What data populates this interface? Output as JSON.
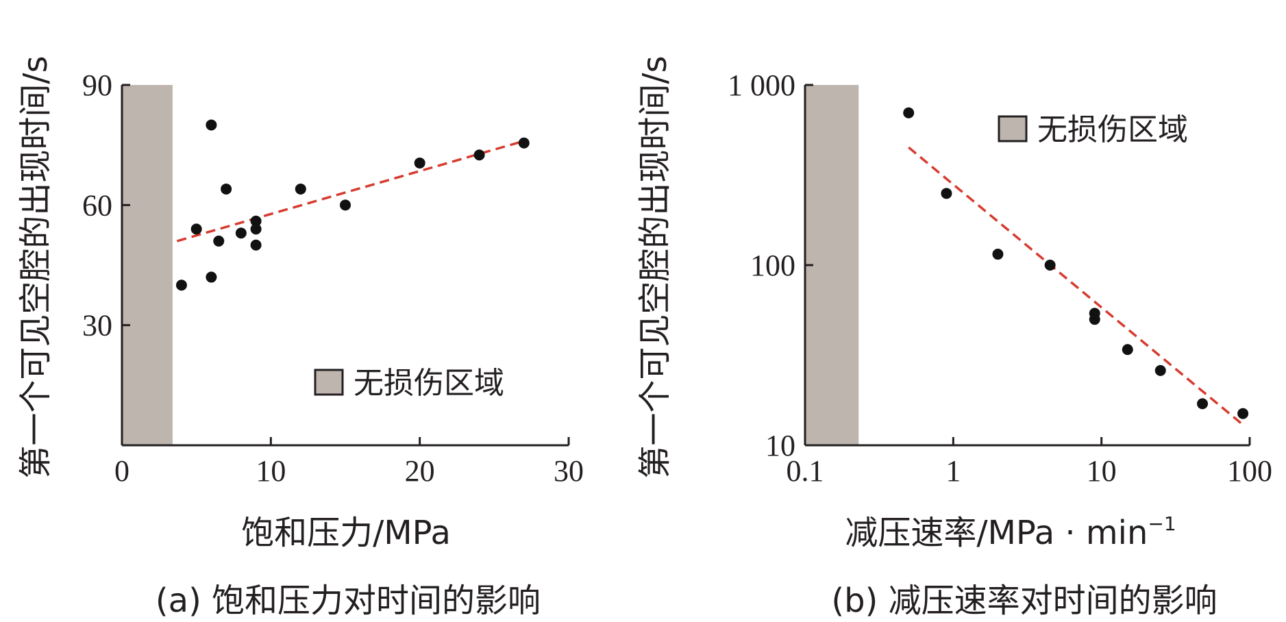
{
  "chart_data": [
    {
      "type": "scatter",
      "xlabel": "饱和压力/MPa",
      "ylabel": "第一个可见空腔的出现时间/s",
      "caption": "(a) 饱和压力对时间的影响",
      "xlim": [
        0,
        30
      ],
      "ylim": [
        0,
        90
      ],
      "xticks": [
        "0",
        "10",
        "20",
        "30"
      ],
      "yticks": [
        "30",
        "60",
        "90"
      ],
      "xtick_values": [
        0,
        10,
        20,
        30
      ],
      "ytick_values": [
        30,
        60,
        90
      ],
      "legend": {
        "label": "无损伤区域",
        "color": "#bdb5ae",
        "position": "bottom-right"
      },
      "shaded_region": {
        "x": [
          0,
          3.4
        ]
      },
      "points": [
        {
          "x": 4,
          "y": 40
        },
        {
          "x": 5,
          "y": 54
        },
        {
          "x": 6,
          "y": 80
        },
        {
          "x": 6,
          "y": 42
        },
        {
          "x": 6.5,
          "y": 51
        },
        {
          "x": 7,
          "y": 64
        },
        {
          "x": 8,
          "y": 53
        },
        {
          "x": 9,
          "y": 56
        },
        {
          "x": 9,
          "y": 54
        },
        {
          "x": 9,
          "y": 50
        },
        {
          "x": 12,
          "y": 64
        },
        {
          "x": 15,
          "y": 60
        },
        {
          "x": 20,
          "y": 70.5
        },
        {
          "x": 24,
          "y": 72.5
        },
        {
          "x": 27,
          "y": 75.5
        }
      ],
      "fit_line": {
        "x": [
          3.7,
          27
        ],
        "y": [
          51,
          76
        ],
        "color": "#d63b2f"
      }
    },
    {
      "type": "scatter",
      "xlabel": "减压速率/MPa · min",
      "xlabel_sup": "−1",
      "ylabel": "第一个可见空腔的出现时间/s",
      "caption": "(b) 减压速率对时间的影响",
      "xscale": "log",
      "yscale": "log",
      "xlim": [
        0.1,
        100
      ],
      "ylim": [
        10,
        1000
      ],
      "xticks": [
        "0.1",
        "1",
        "10",
        "100"
      ],
      "yticks": [
        "10",
        "100",
        "1 000"
      ],
      "xtick_values": [
        0.1,
        1,
        10,
        100
      ],
      "ytick_values": [
        10,
        100,
        1000
      ],
      "legend": {
        "label": "无损伤区域",
        "color": "#bdb5ae",
        "position": "top-right"
      },
      "shaded_region": {
        "x": [
          0.1,
          0.23
        ]
      },
      "points": [
        {
          "x": 0.5,
          "y": 700
        },
        {
          "x": 0.9,
          "y": 250
        },
        {
          "x": 2,
          "y": 115
        },
        {
          "x": 4.5,
          "y": 100
        },
        {
          "x": 9,
          "y": 54
        },
        {
          "x": 9,
          "y": 50
        },
        {
          "x": 15,
          "y": 34
        },
        {
          "x": 25,
          "y": 26
        },
        {
          "x": 48,
          "y": 17
        },
        {
          "x": 90,
          "y": 15
        }
      ],
      "fit_line": {
        "x": [
          0.5,
          90
        ],
        "y": [
          450,
          13
        ],
        "color": "#d63b2f"
      }
    }
  ]
}
